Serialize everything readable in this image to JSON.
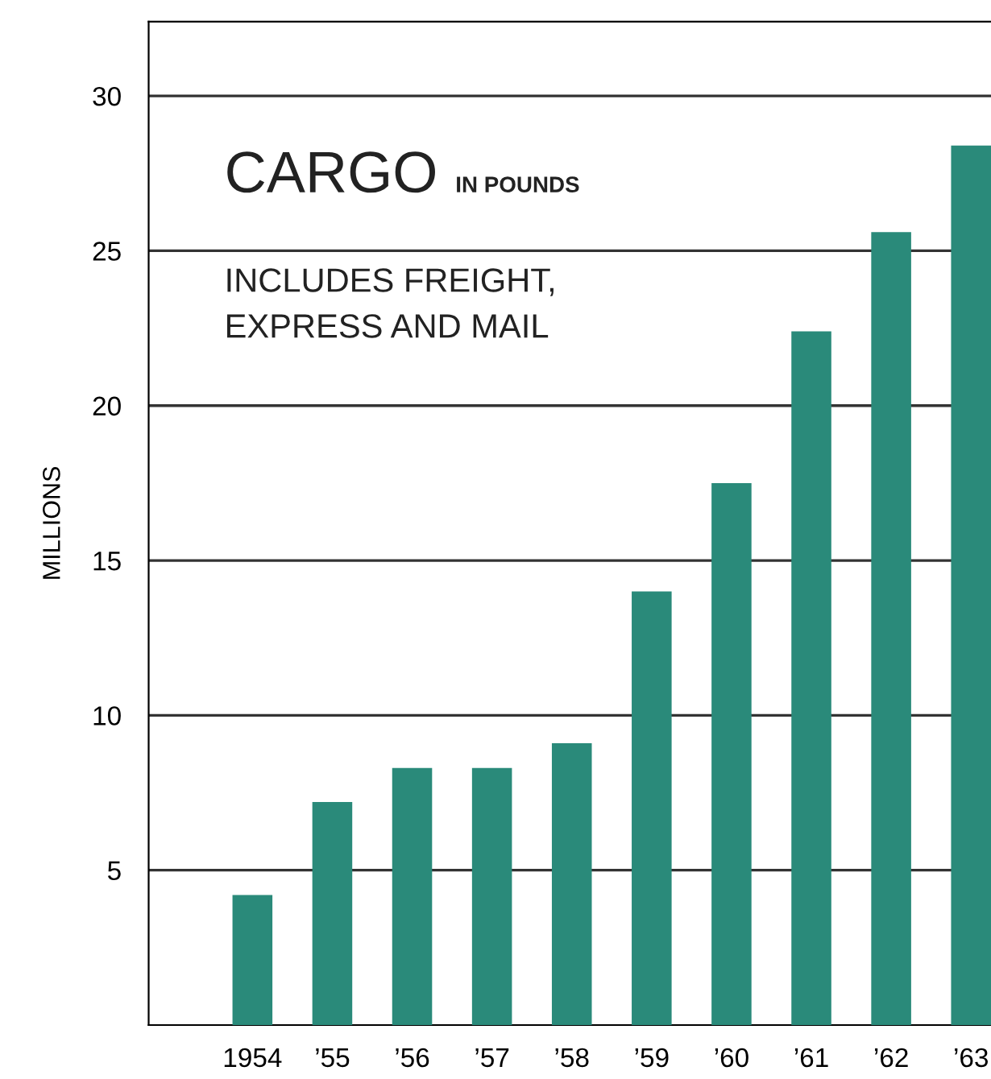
{
  "chart_data": {
    "type": "bar",
    "title": "CARGO",
    "subtitle": "IN POUNDS",
    "ylabel": "MILLIONS",
    "annotations": [
      "INCLUDES FREIGHT,\nEXPRESS AND MAIL"
    ],
    "categories": [
      "1954",
      "’55",
      "’56",
      "’57",
      "’58",
      "’59",
      "’60",
      "’61",
      "’62",
      "’63"
    ],
    "values": [
      4.2,
      7.2,
      8.3,
      8.3,
      9.1,
      14.0,
      17.5,
      22.4,
      25.6,
      28.4
    ],
    "color": "#2a8a7a",
    "ylim": [
      0,
      32.4
    ],
    "yticks": [
      5,
      10,
      15,
      20,
      25,
      30
    ],
    "grid": "y",
    "legend": false
  }
}
